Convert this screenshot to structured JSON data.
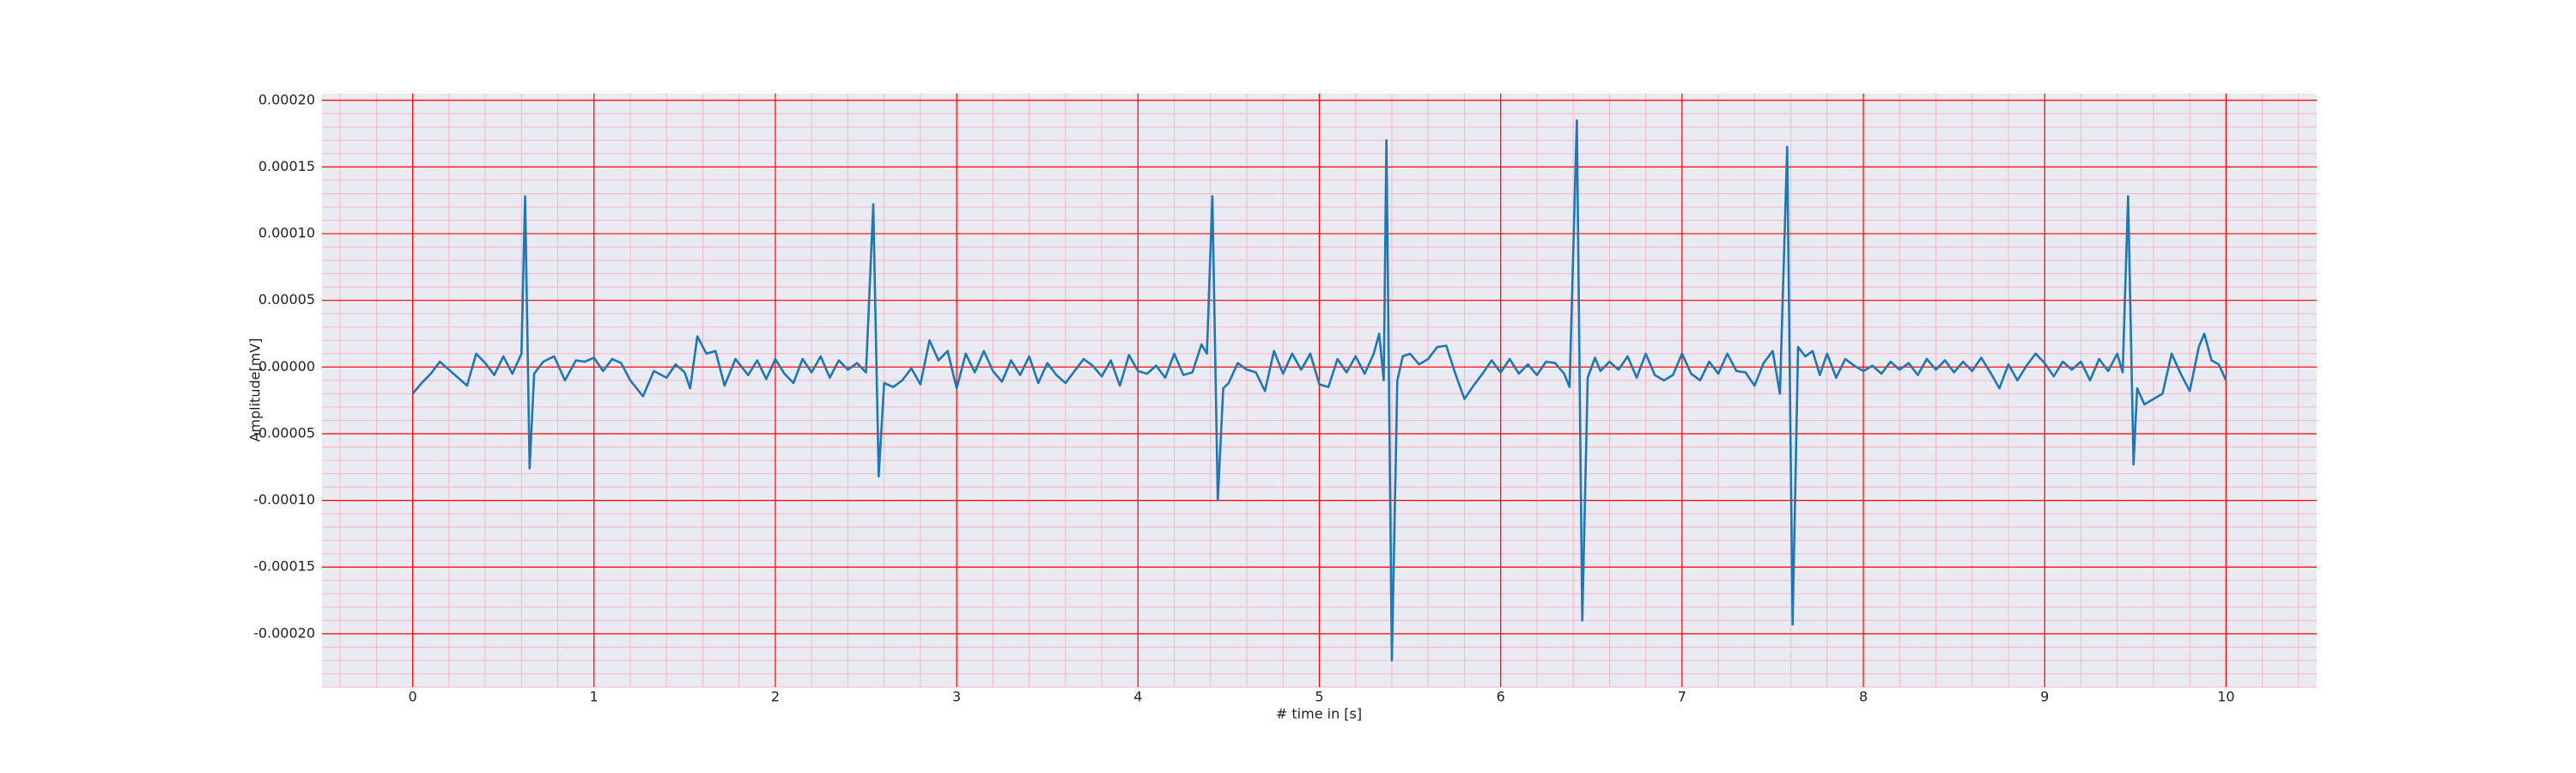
{
  "chart_data": {
    "type": "line",
    "xlabel": "# time in [s]",
    "ylabel": "Amplitude[mV]",
    "xlim": [
      -0.5,
      10.5
    ],
    "ylim": [
      -0.00024,
      0.000205
    ],
    "xticks": [
      0,
      1,
      2,
      3,
      4,
      5,
      6,
      7,
      8,
      9,
      10
    ],
    "yticks": [
      {
        "value": -0.0002,
        "label": "-0.00020"
      },
      {
        "value": -0.00015,
        "label": "-0.00015"
      },
      {
        "value": -0.0001,
        "label": "-0.00010"
      },
      {
        "value": -5e-05,
        "label": "-0.00005"
      },
      {
        "value": 0,
        "label": "0.00000"
      },
      {
        "value": 5e-05,
        "label": "0.00005"
      },
      {
        "value": 0.0001,
        "label": "0.00010"
      },
      {
        "value": 0.00015,
        "label": "0.00015"
      },
      {
        "value": 0.0002,
        "label": "0.00020"
      }
    ],
    "grid": true,
    "minor_grid": true,
    "grid_color": "#ff0000",
    "minor_grid_color": "#f4b6c8",
    "background": "#eaeaf2",
    "series": [
      {
        "color": "#1f77b4",
        "x": [
          0,
          0.05,
          0.1,
          0.15,
          0.2,
          0.25,
          0.3,
          0.35,
          0.4,
          0.45,
          0.5,
          0.55,
          0.6,
          0.62,
          0.645,
          0.67,
          0.72,
          0.78,
          0.84,
          0.9,
          0.95,
          1.0,
          1.05,
          1.1,
          1.15,
          1.2,
          1.27,
          1.33,
          1.4,
          1.45,
          1.5,
          1.53,
          1.57,
          1.62,
          1.67,
          1.72,
          1.78,
          1.85,
          1.9,
          1.95,
          2.0,
          2.05,
          2.1,
          2.15,
          2.2,
          2.25,
          2.3,
          2.35,
          2.4,
          2.45,
          2.5,
          2.54,
          2.57,
          2.6,
          2.65,
          2.7,
          2.75,
          2.8,
          2.85,
          2.9,
          2.95,
          3.0,
          3.05,
          3.1,
          3.15,
          3.2,
          3.25,
          3.3,
          3.35,
          3.4,
          3.45,
          3.5,
          3.55,
          3.6,
          3.65,
          3.7,
          3.75,
          3.8,
          3.85,
          3.9,
          3.95,
          4.0,
          4.05,
          4.1,
          4.15,
          4.2,
          4.25,
          4.3,
          4.35,
          4.38,
          4.41,
          4.44,
          4.47,
          4.5,
          4.55,
          4.6,
          4.65,
          4.7,
          4.75,
          4.8,
          4.85,
          4.9,
          4.95,
          5.0,
          5.05,
          5.1,
          5.15,
          5.2,
          5.25,
          5.3,
          5.33,
          5.355,
          5.37,
          5.4,
          5.43,
          5.46,
          5.5,
          5.55,
          5.6,
          5.65,
          5.7,
          5.75,
          5.8,
          5.85,
          5.9,
          5.95,
          6.0,
          6.05,
          6.1,
          6.15,
          6.2,
          6.25,
          6.3,
          6.35,
          6.38,
          6.42,
          6.45,
          6.48,
          6.52,
          6.55,
          6.6,
          6.65,
          6.7,
          6.75,
          6.8,
          6.85,
          6.9,
          6.95,
          7.0,
          7.05,
          7.1,
          7.15,
          7.2,
          7.25,
          7.3,
          7.35,
          7.4,
          7.45,
          7.5,
          7.54,
          7.58,
          7.61,
          7.64,
          7.68,
          7.72,
          7.76,
          7.8,
          7.85,
          7.9,
          7.95,
          8.0,
          8.05,
          8.1,
          8.15,
          8.2,
          8.25,
          8.3,
          8.35,
          8.4,
          8.45,
          8.5,
          8.55,
          8.6,
          8.65,
          8.7,
          8.75,
          8.8,
          8.85,
          8.9,
          8.95,
          9.0,
          9.05,
          9.1,
          9.15,
          9.2,
          9.25,
          9.3,
          9.35,
          9.4,
          9.43,
          9.46,
          9.49,
          9.51,
          9.55,
          9.6,
          9.65,
          9.7,
          9.75,
          9.8,
          9.85,
          9.88,
          9.92,
          9.96,
          10.0
        ],
        "values": [
          -2e-05,
          -1.2e-05,
          -5e-06,
          4e-06,
          -2e-06,
          -8e-06,
          -1.4e-05,
          1e-05,
          3e-06,
          -6e-06,
          8e-06,
          -5e-06,
          1e-05,
          0.000128,
          -7.6e-05,
          -5e-06,
          4e-06,
          8e-06,
          -1e-05,
          5e-06,
          4e-06,
          7e-06,
          -3e-06,
          6e-06,
          3e-06,
          -1e-05,
          -2.2e-05,
          -3e-06,
          -8e-06,
          2e-06,
          -4e-06,
          -1.6e-05,
          2.3e-05,
          1e-05,
          1.2e-05,
          -1.4e-05,
          6e-06,
          -6e-06,
          5e-06,
          -9e-06,
          6e-06,
          -5e-06,
          -1.2e-05,
          6e-06,
          -4e-06,
          8e-06,
          -8e-06,
          5e-06,
          -2e-06,
          3e-06,
          -4e-06,
          0.000122,
          -8.2e-05,
          -1.2e-05,
          -1.5e-05,
          -1e-05,
          -1e-06,
          -1.3e-05,
          2e-05,
          5e-06,
          1.2e-05,
          -1.6e-05,
          1e-05,
          -4e-06,
          1.2e-05,
          -3e-06,
          -1.1e-05,
          5e-06,
          -6e-06,
          8e-06,
          -1.2e-05,
          3e-06,
          -6e-06,
          -1.2e-05,
          -3e-06,
          6e-06,
          1e-06,
          -7e-06,
          5e-06,
          -1.4e-05,
          9e-06,
          -3e-06,
          -5e-06,
          1e-06,
          -8e-06,
          1e-05,
          -6e-06,
          -4e-06,
          1.7e-05,
          1e-05,
          0.000128,
          -0.0001,
          -1.6e-05,
          -1.2e-05,
          3e-06,
          -2e-06,
          -4e-06,
          -1.8e-05,
          1.2e-05,
          -5e-06,
          1e-05,
          -2e-06,
          1e-05,
          -1.3e-05,
          -1.5e-05,
          6e-06,
          -4e-06,
          8e-06,
          -5e-06,
          1e-05,
          2.5e-05,
          -1e-05,
          0.00017,
          -0.00022,
          -1e-05,
          8e-06,
          1e-05,
          2e-06,
          6e-06,
          1.5e-05,
          1.6e-05,
          -5e-06,
          -2.4e-05,
          -1.4e-05,
          -5e-06,
          5e-06,
          -4e-06,
          6e-06,
          -5e-06,
          2e-06,
          -6e-06,
          4e-06,
          3e-06,
          -5e-06,
          -1.5e-05,
          0.000185,
          -0.00019,
          -8e-06,
          7e-06,
          -3e-06,
          4e-06,
          -2e-06,
          8e-06,
          -8e-06,
          1e-05,
          -6e-06,
          -1e-05,
          -6e-06,
          1e-05,
          -5e-06,
          -1e-05,
          4e-06,
          -5e-06,
          1e-05,
          -3e-06,
          -4e-06,
          -1.4e-05,
          3e-06,
          1.2e-05,
          -2e-05,
          0.000165,
          -0.000193,
          1.5e-05,
          8e-06,
          1.2e-05,
          -6e-06,
          1e-05,
          -8e-06,
          6e-06,
          1e-06,
          -3e-06,
          1e-06,
          -5e-06,
          4e-06,
          -2e-06,
          3e-06,
          -6e-06,
          6e-06,
          -2e-06,
          5e-06,
          -4e-06,
          4e-06,
          -3e-06,
          7e-06,
          -4e-06,
          -1.6e-05,
          2e-06,
          -1e-05,
          1e-06,
          1e-05,
          3e-06,
          -7e-06,
          4e-06,
          -2e-06,
          4e-06,
          -1e-05,
          6e-06,
          -3e-06,
          1e-05,
          -4e-06,
          0.000128,
          -7.3e-05,
          -1.6e-05,
          -2.8e-05,
          -2.4e-05,
          -2e-05,
          1e-05,
          -5e-06,
          -1.8e-05,
          1.5e-05,
          2.5e-05,
          5e-06,
          2e-06,
          -1e-05
        ]
      }
    ]
  }
}
